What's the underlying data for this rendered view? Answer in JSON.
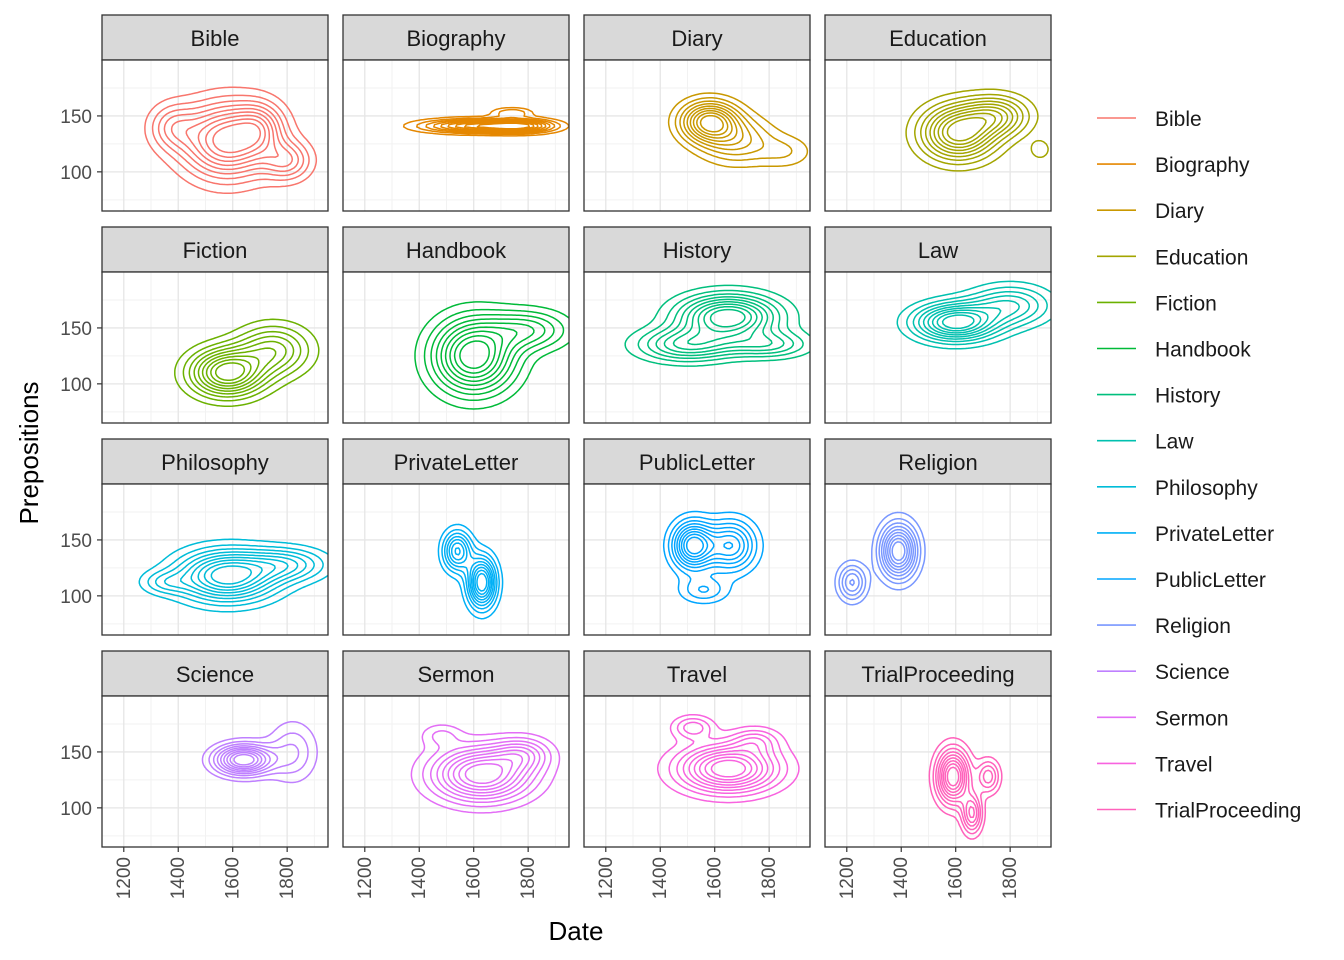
{
  "chart_data": {
    "type": "contour",
    "xlabel": "Date",
    "ylabel": "Prepositions",
    "x_ticks": [
      1200,
      1400,
      1600,
      1800
    ],
    "y_ticks": [
      100,
      150
    ],
    "xlim": [
      1120,
      1950
    ],
    "ylim": [
      65,
      200
    ],
    "grid": true,
    "legend_position": "right",
    "facets": [
      {
        "name": "Bible",
        "color": "#F8766D",
        "peaks": [
          {
            "x": 1580,
            "y": 128,
            "sx": 110,
            "sy": 22,
            "w": 1
          },
          {
            "x": 1800,
            "y": 110,
            "sx": 60,
            "sy": 12,
            "w": 0.45
          },
          {
            "x": 1700,
            "y": 140,
            "sx": 60,
            "sy": 15,
            "w": 0.4
          },
          {
            "x": 1380,
            "y": 140,
            "sx": 60,
            "sy": 14,
            "w": 0.35
          }
        ]
      },
      {
        "name": "Biography",
        "color": "#E58700",
        "peaks": [
          {
            "x": 1610,
            "y": 141,
            "sx": 130,
            "sy": 4,
            "w": 1
          },
          {
            "x": 1780,
            "y": 141,
            "sx": 80,
            "sy": 4,
            "w": 0.8
          },
          {
            "x": 1740,
            "y": 153,
            "sx": 50,
            "sy": 3,
            "w": 0.35
          }
        ]
      },
      {
        "name": "Diary",
        "color": "#C99800",
        "peaks": [
          {
            "x": 1580,
            "y": 145,
            "sx": 70,
            "sy": 12,
            "w": 1
          },
          {
            "x": 1680,
            "y": 128,
            "sx": 90,
            "sy": 14,
            "w": 0.45
          },
          {
            "x": 1860,
            "y": 118,
            "sx": 70,
            "sy": 10,
            "w": 0.2
          }
        ]
      },
      {
        "name": "Education",
        "color": "#A3A500",
        "peaks": [
          {
            "x": 1610,
            "y": 135,
            "sx": 90,
            "sy": 16,
            "w": 1
          },
          {
            "x": 1750,
            "y": 150,
            "sx": 80,
            "sy": 12,
            "w": 0.6
          },
          {
            "x": 1910,
            "y": 120,
            "sx": 25,
            "sy": 6,
            "w": 0.2
          }
        ]
      },
      {
        "name": "Fiction",
        "color": "#6BB100",
        "peaks": [
          {
            "x": 1580,
            "y": 110,
            "sx": 90,
            "sy": 14,
            "w": 1
          },
          {
            "x": 1750,
            "y": 130,
            "sx": 90,
            "sy": 15,
            "w": 0.55
          }
        ]
      },
      {
        "name": "Handbook",
        "color": "#00BA38",
        "peaks": [
          {
            "x": 1600,
            "y": 125,
            "sx": 100,
            "sy": 22,
            "w": 1
          },
          {
            "x": 1800,
            "y": 148,
            "sx": 100,
            "sy": 12,
            "w": 0.45
          }
        ]
      },
      {
        "name": "History",
        "color": "#00BF7D",
        "peaks": [
          {
            "x": 1650,
            "y": 160,
            "sx": 120,
            "sy": 13,
            "w": 1
          },
          {
            "x": 1500,
            "y": 135,
            "sx": 120,
            "sy": 10,
            "w": 0.6
          },
          {
            "x": 1800,
            "y": 135,
            "sx": 100,
            "sy": 8,
            "w": 0.4
          }
        ]
      },
      {
        "name": "Law",
        "color": "#00C0AF",
        "peaks": [
          {
            "x": 1600,
            "y": 155,
            "sx": 100,
            "sy": 11,
            "w": 1
          },
          {
            "x": 1800,
            "y": 170,
            "sx": 100,
            "sy": 12,
            "w": 0.5
          }
        ]
      },
      {
        "name": "Philosophy",
        "color": "#00BCD8",
        "peaks": [
          {
            "x": 1580,
            "y": 118,
            "sx": 120,
            "sy": 15,
            "w": 1
          },
          {
            "x": 1800,
            "y": 128,
            "sx": 100,
            "sy": 10,
            "w": 0.45
          },
          {
            "x": 1350,
            "y": 112,
            "sx": 60,
            "sy": 7,
            "w": 0.25
          }
        ]
      },
      {
        "name": "PrivateLetter",
        "color": "#00B0F6",
        "peaks": [
          {
            "x": 1630,
            "y": 112,
            "sx": 35,
            "sy": 15,
            "w": 1
          },
          {
            "x": 1540,
            "y": 140,
            "sx": 35,
            "sy": 12,
            "w": 0.7
          }
        ]
      },
      {
        "name": "PublicLetter",
        "color": "#00A5FF",
        "peaks": [
          {
            "x": 1520,
            "y": 145,
            "sx": 50,
            "sy": 14,
            "w": 1
          },
          {
            "x": 1660,
            "y": 145,
            "sx": 60,
            "sy": 15,
            "w": 0.7
          },
          {
            "x": 1560,
            "y": 105,
            "sx": 60,
            "sy": 8,
            "w": 0.3
          }
        ]
      },
      {
        "name": "Religion",
        "color": "#7997FF",
        "peaks": [
          {
            "x": 1390,
            "y": 140,
            "sx": 45,
            "sy": 16,
            "w": 1
          },
          {
            "x": 1220,
            "y": 112,
            "sx": 35,
            "sy": 11,
            "w": 0.5
          }
        ]
      },
      {
        "name": "Science",
        "color": "#BF80FF",
        "peaks": [
          {
            "x": 1640,
            "y": 143,
            "sx": 70,
            "sy": 9,
            "w": 1
          },
          {
            "x": 1820,
            "y": 150,
            "sx": 60,
            "sy": 18,
            "w": 0.3
          }
        ]
      },
      {
        "name": "Sermon",
        "color": "#E36EF6",
        "peaks": [
          {
            "x": 1630,
            "y": 130,
            "sx": 120,
            "sy": 16,
            "w": 1
          },
          {
            "x": 1780,
            "y": 148,
            "sx": 70,
            "sy": 10,
            "w": 0.4
          },
          {
            "x": 1480,
            "y": 165,
            "sx": 50,
            "sy": 7,
            "w": 0.2
          }
        ]
      },
      {
        "name": "Travel",
        "color": "#F863DF",
        "peaks": [
          {
            "x": 1650,
            "y": 135,
            "sx": 120,
            "sy": 14,
            "w": 1
          },
          {
            "x": 1520,
            "y": 172,
            "sx": 50,
            "sy": 7,
            "w": 0.35
          },
          {
            "x": 1750,
            "y": 160,
            "sx": 60,
            "sy": 8,
            "w": 0.3
          }
        ]
      },
      {
        "name": "TrialProceeding",
        "color": "#FF62BC",
        "peaks": [
          {
            "x": 1590,
            "y": 128,
            "sx": 40,
            "sy": 16,
            "w": 1
          },
          {
            "x": 1660,
            "y": 95,
            "sx": 25,
            "sy": 12,
            "w": 0.6
          },
          {
            "x": 1720,
            "y": 128,
            "sx": 28,
            "sy": 10,
            "w": 0.45
          }
        ]
      }
    ]
  }
}
